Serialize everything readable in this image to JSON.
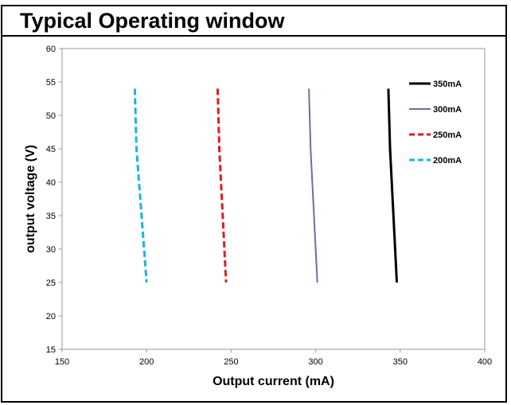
{
  "title": "Typical Operating window",
  "chart_data": {
    "type": "line",
    "title": "Typical Operating window",
    "xlabel": "Output current (mA)",
    "ylabel": "output voltage (V)",
    "xlim": [
      150,
      400
    ],
    "ylim": [
      15,
      60
    ],
    "xticks": [
      150,
      200,
      250,
      300,
      350,
      400
    ],
    "yticks": [
      15,
      20,
      25,
      30,
      35,
      40,
      45,
      50,
      55,
      60
    ],
    "grid": false,
    "legend_position": "top-right",
    "series": [
      {
        "name": "350mA",
        "color": "#000000",
        "dash": "solid",
        "width": 3,
        "x": [
          343,
          344,
          346,
          348
        ],
        "y": [
          54,
          45,
          35,
          25
        ]
      },
      {
        "name": "300mA",
        "color": "#8064a2",
        "dash": "solid",
        "width": 2,
        "x": [
          296,
          297,
          299,
          301
        ],
        "y": [
          54,
          45,
          35,
          25
        ]
      },
      {
        "name": "250mA",
        "color": "#e8181e",
        "dash": "dashed",
        "width": 3,
        "x": [
          242,
          243,
          245,
          247
        ],
        "y": [
          54,
          45,
          35,
          25
        ]
      },
      {
        "name": "200mA",
        "color": "#18b4e8",
        "dash": "dashed",
        "width": 3,
        "x": [
          193,
          194,
          197,
          200
        ],
        "y": [
          54,
          45,
          35,
          25
        ]
      }
    ]
  }
}
